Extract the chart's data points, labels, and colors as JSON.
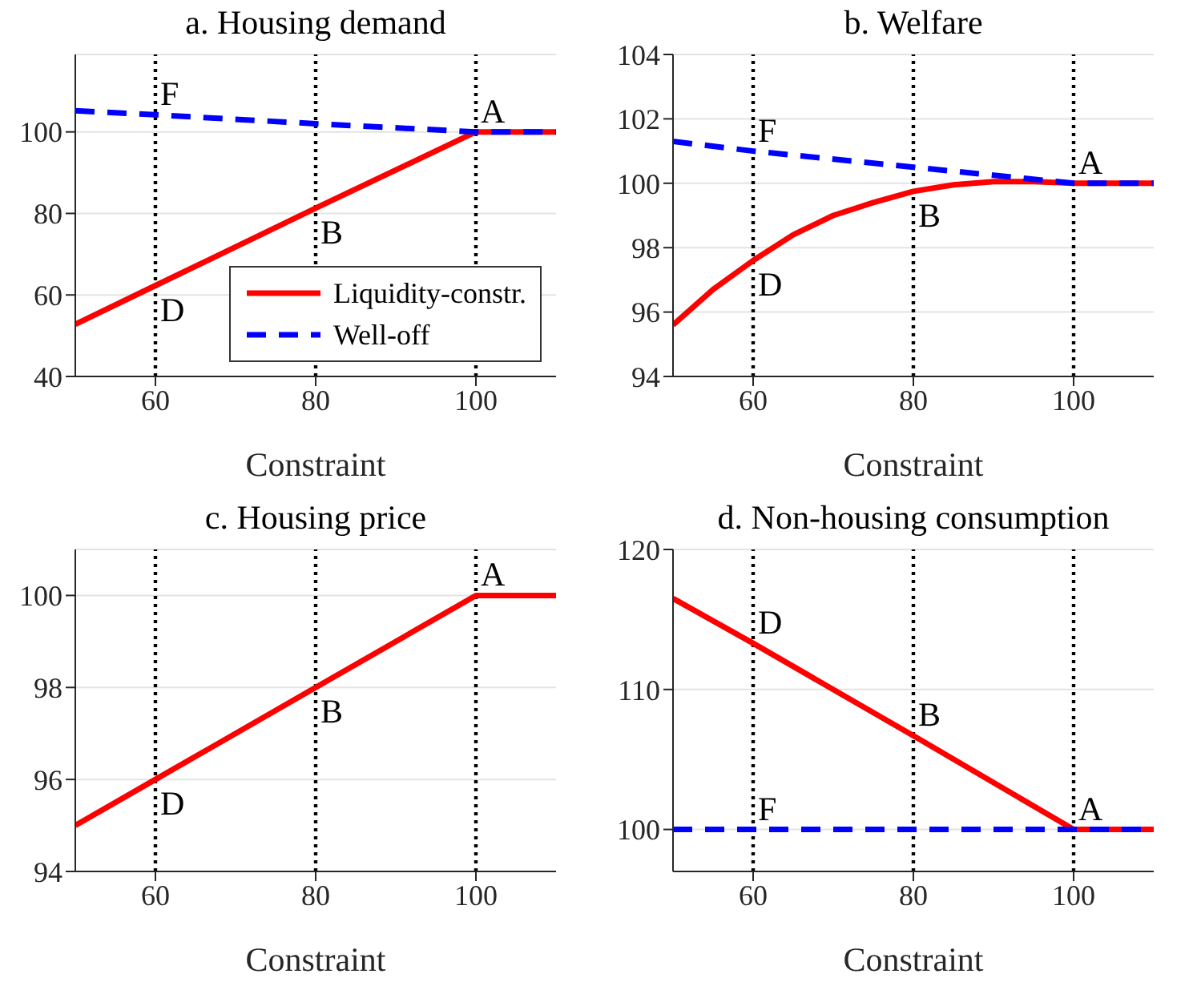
{
  "chart_data": [
    {
      "type": "line",
      "title": "a. Housing demand",
      "xlabel": "Constraint",
      "xlim": [
        50,
        110
      ],
      "xticks": [
        60,
        80,
        100
      ],
      "ylim": [
        40,
        119
      ],
      "yticks": [
        40,
        60,
        80,
        100
      ],
      "grid": "y",
      "legend": "bottom right",
      "series": [
        {
          "name": "Liquidity-constr.",
          "color": "#ff0000",
          "x": [
            50,
            60,
            80,
            100,
            110
          ],
          "values": [
            52.8,
            62.3,
            81.3,
            100,
            100
          ],
          "line_style": "solid"
        },
        {
          "name": "Well-off",
          "color": "#0000ff",
          "x": [
            50,
            60,
            80,
            100,
            110
          ],
          "values": [
            105.2,
            104.2,
            102,
            100,
            100
          ],
          "line_style": "dashed"
        }
      ],
      "ref_lines": [
        {
          "axis": "x",
          "value": 60,
          "color": "#000000",
          "line_style": "dotted"
        },
        {
          "axis": "x",
          "value": 80,
          "color": "#000000",
          "line_style": "dotted"
        },
        {
          "axis": "x",
          "value": 100,
          "color": "#000000",
          "line_style": "dotted"
        }
      ],
      "annotations": [
        {
          "text": "F",
          "x": 60,
          "y": 104.2
        },
        {
          "text": "A",
          "x": 100,
          "y": 100
        },
        {
          "text": "B",
          "x": 80,
          "y": 81.3
        },
        {
          "text": "D",
          "x": 60,
          "y": 62.3
        }
      ]
    },
    {
      "type": "line",
      "title": "b. Welfare",
      "xlabel": "Constraint",
      "xlim": [
        50,
        110
      ],
      "xticks": [
        60,
        80,
        100
      ],
      "ylim": [
        94,
        104
      ],
      "yticks": [
        94,
        96,
        98,
        100,
        102,
        104
      ],
      "grid": "y",
      "legend": false,
      "series": [
        {
          "color": "#ff0000",
          "x": [
            50,
            55,
            60,
            65,
            70,
            75,
            80,
            85,
            90,
            95,
            100,
            110
          ],
          "values": [
            95.6,
            96.7,
            97.6,
            98.4,
            99.0,
            99.4,
            99.75,
            99.95,
            100.05,
            100.05,
            100,
            100
          ],
          "line_style": "solid"
        },
        {
          "color": "#0000ff",
          "x": [
            50,
            60,
            80,
            100,
            110
          ],
          "values": [
            101.3,
            101.0,
            100.5,
            100,
            100
          ],
          "line_style": "dashed"
        }
      ],
      "ref_lines": [
        {
          "axis": "x",
          "value": 60,
          "color": "#000000",
          "line_style": "dotted"
        },
        {
          "axis": "x",
          "value": 80,
          "color": "#000000",
          "line_style": "dotted"
        },
        {
          "axis": "x",
          "value": 100,
          "color": "#000000",
          "line_style": "dotted"
        }
      ],
      "annotations": [
        {
          "text": "F",
          "x": 60,
          "y": 101.0
        },
        {
          "text": "A",
          "x": 100,
          "y": 100
        },
        {
          "text": "B",
          "x": 80,
          "y": 99.75
        },
        {
          "text": "D",
          "x": 60,
          "y": 97.6
        }
      ]
    },
    {
      "type": "line",
      "title": "c. Housing price",
      "xlabel": "Constraint",
      "xlim": [
        50,
        110
      ],
      "xticks": [
        60,
        80,
        100
      ],
      "ylim": [
        94,
        101
      ],
      "yticks": [
        94,
        96,
        98,
        100
      ],
      "grid": "y",
      "legend": false,
      "series": [
        {
          "color": "#ff0000",
          "x": [
            50,
            60,
            80,
            100,
            110
          ],
          "values": [
            95,
            96,
            98,
            100,
            100
          ],
          "line_style": "solid"
        }
      ],
      "ref_lines": [
        {
          "axis": "x",
          "value": 60,
          "color": "#000000",
          "line_style": "dotted"
        },
        {
          "axis": "x",
          "value": 80,
          "color": "#000000",
          "line_style": "dotted"
        },
        {
          "axis": "x",
          "value": 100,
          "color": "#000000",
          "line_style": "dotted"
        }
      ],
      "annotations": [
        {
          "text": "A",
          "x": 100,
          "y": 100
        },
        {
          "text": "B",
          "x": 80,
          "y": 98
        },
        {
          "text": "D",
          "x": 60,
          "y": 96
        }
      ]
    },
    {
      "type": "line",
      "title": "d. Non-housing consumption",
      "xlabel": "Constraint",
      "xlim": [
        50,
        110
      ],
      "xticks": [
        60,
        80,
        100
      ],
      "ylim": [
        97,
        120
      ],
      "yticks": [
        100,
        110,
        120
      ],
      "grid": "y",
      "legend": false,
      "series": [
        {
          "color": "#ff0000",
          "x": [
            50,
            60,
            80,
            100,
            110
          ],
          "values": [
            116.5,
            113.3,
            106.7,
            100,
            100
          ],
          "line_style": "solid"
        },
        {
          "color": "#0000ff",
          "x": [
            50,
            110
          ],
          "values": [
            100,
            100
          ],
          "line_style": "dashed"
        }
      ],
      "ref_lines": [
        {
          "axis": "x",
          "value": 60,
          "color": "#000000",
          "line_style": "dotted"
        },
        {
          "axis": "x",
          "value": 80,
          "color": "#000000",
          "line_style": "dotted"
        },
        {
          "axis": "x",
          "value": 100,
          "color": "#000000",
          "line_style": "dotted"
        }
      ],
      "annotations": [
        {
          "text": "D",
          "x": 60,
          "y": 113.3
        },
        {
          "text": "B",
          "x": 80,
          "y": 106.7
        },
        {
          "text": "F",
          "x": 60,
          "y": 100
        },
        {
          "text": "A",
          "x": 100,
          "y": 100
        }
      ]
    }
  ]
}
